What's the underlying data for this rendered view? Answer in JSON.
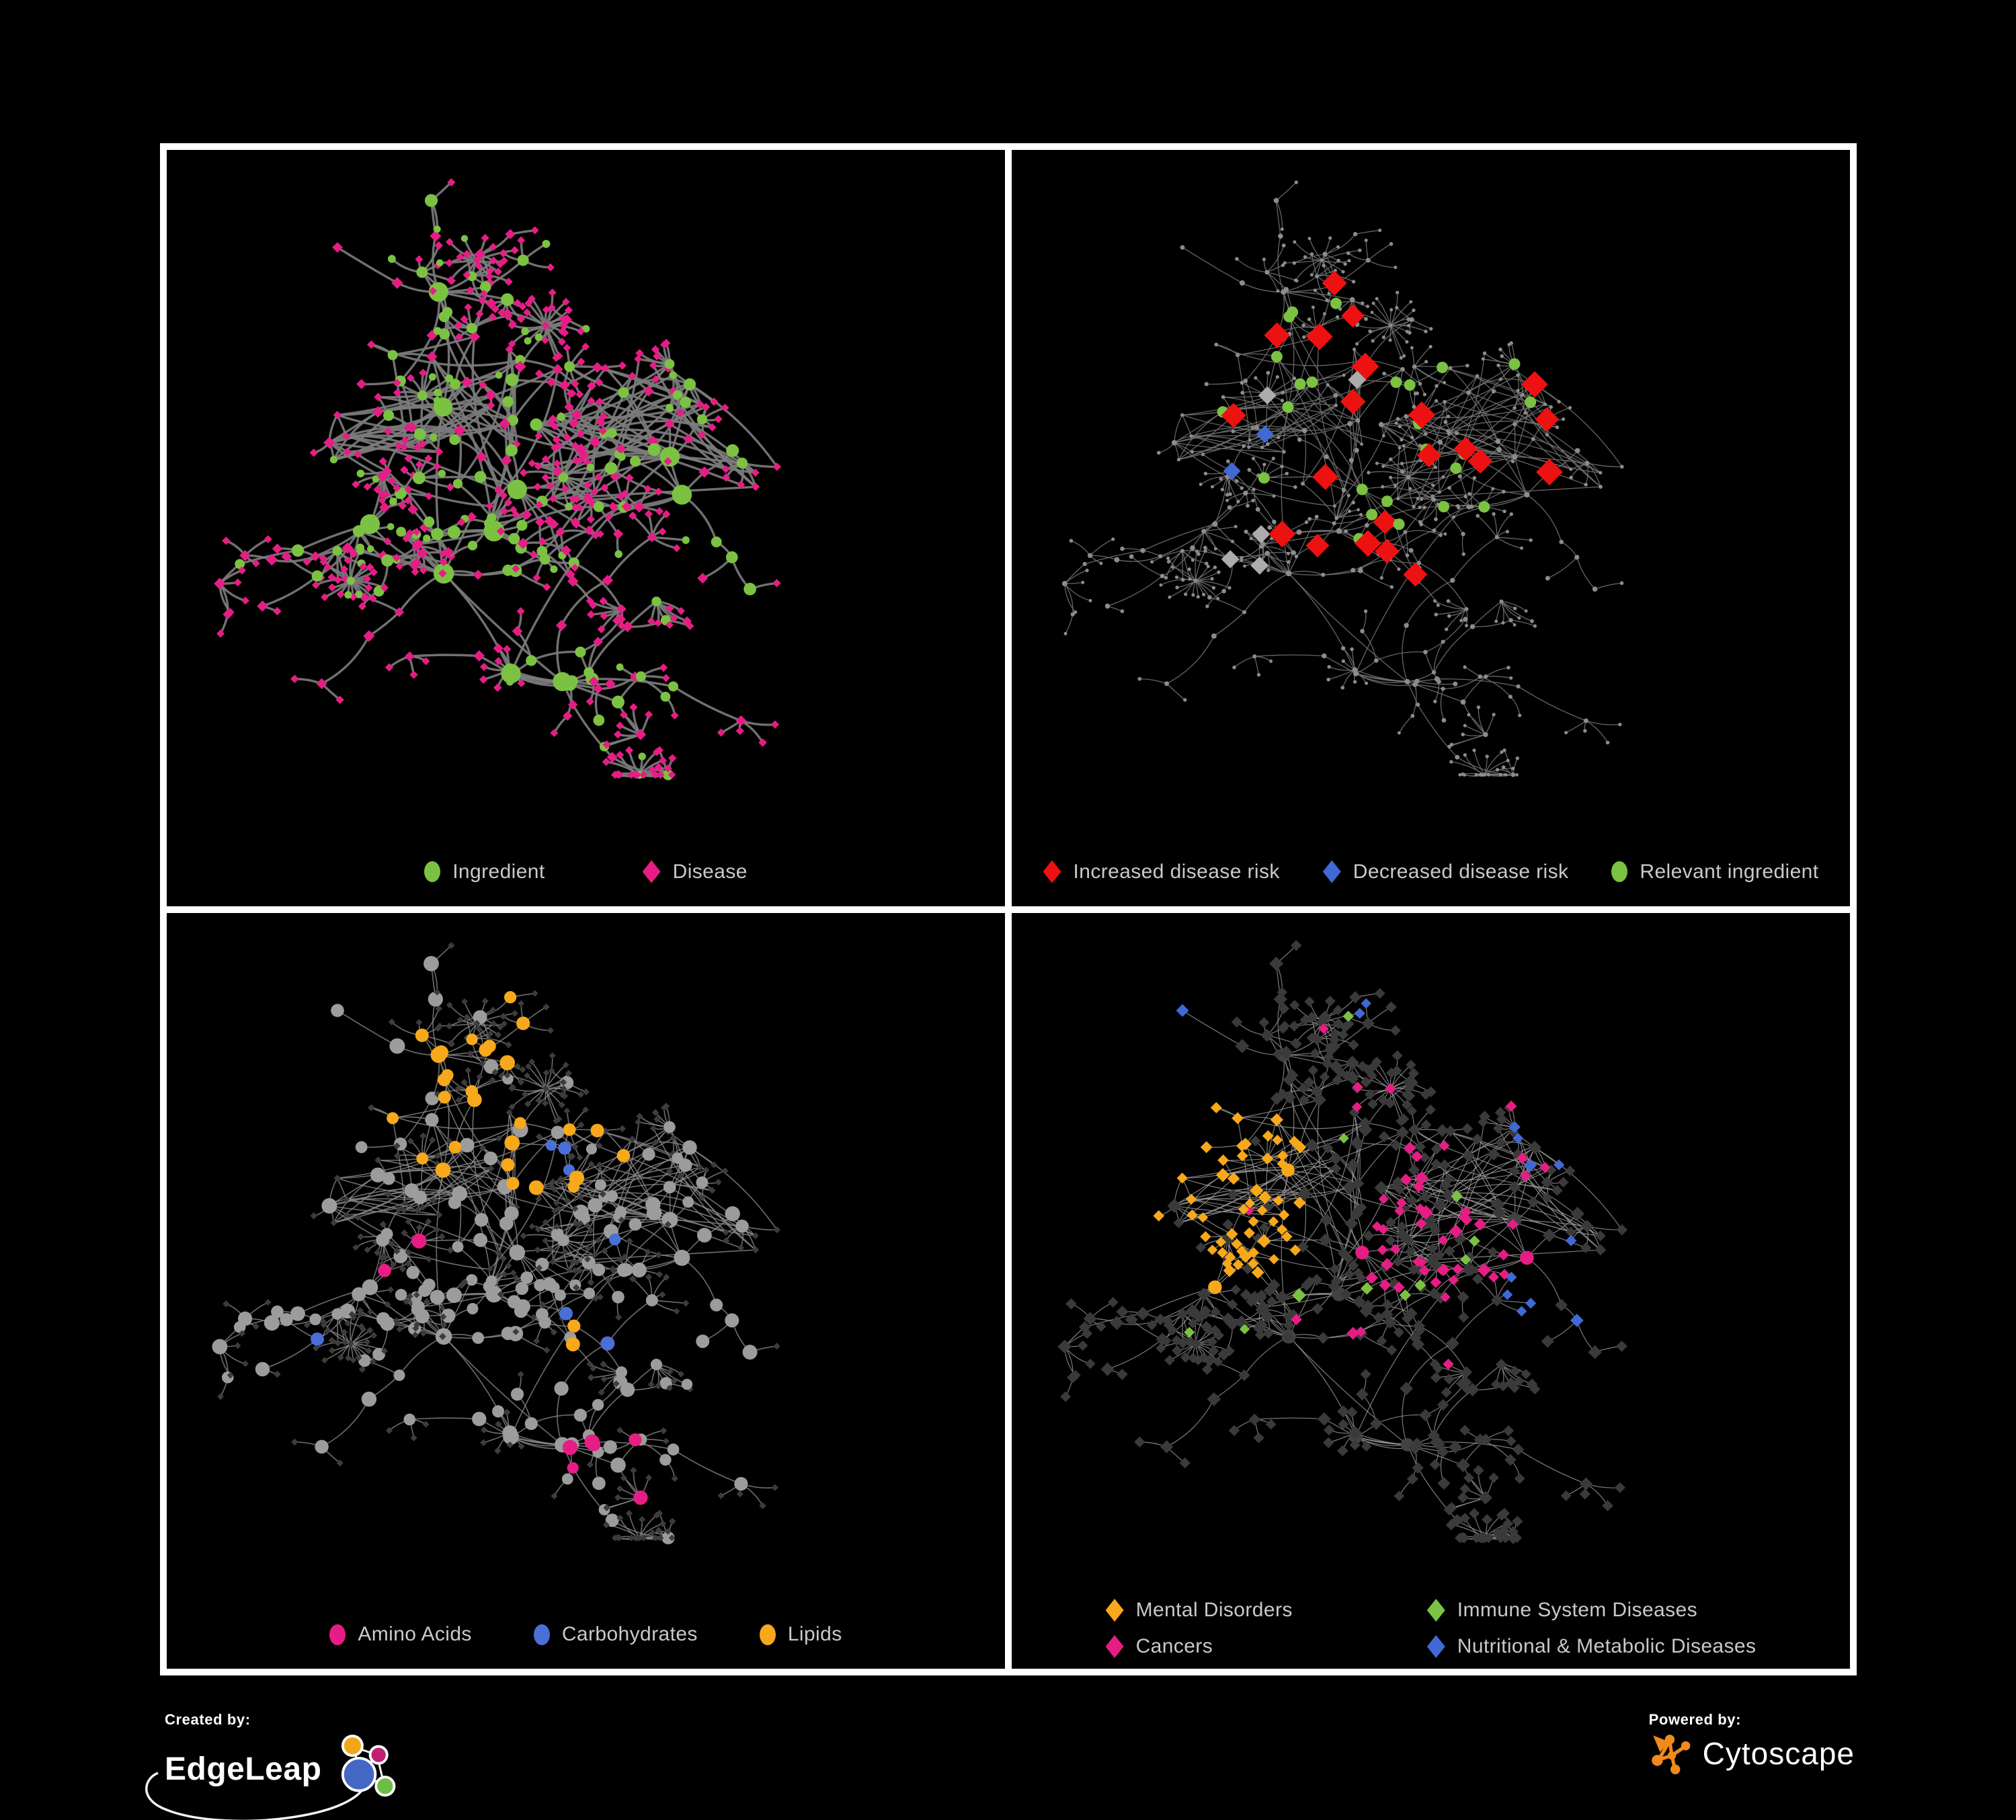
{
  "figure": {
    "background": "#000000",
    "frame_color": "#ffffff",
    "legend_text_color": "#c9c9c9"
  },
  "panels": [
    {
      "id": "ingredient-disease",
      "legend": {
        "items": [
          {
            "label": "Ingredient",
            "shape": "circle",
            "color": "#7CC242"
          },
          {
            "label": "Disease",
            "shape": "diamond",
            "color": "#E61D85"
          }
        ]
      }
    },
    {
      "id": "disease-risk",
      "legend": {
        "items": [
          {
            "label": "Increased disease risk",
            "shape": "diamond",
            "color": "#EE1111"
          },
          {
            "label": "Decreased disease risk",
            "shape": "diamond",
            "color": "#4169D6"
          },
          {
            "label": "Relevant ingredient",
            "shape": "circle",
            "color": "#7CC242"
          }
        ]
      }
    },
    {
      "id": "nutrient-classes",
      "legend": {
        "items": [
          {
            "label": "Amino Acids",
            "shape": "circle",
            "color": "#E61D85"
          },
          {
            "label": "Carbohydrates",
            "shape": "circle",
            "color": "#4A6FD6"
          },
          {
            "label": "Lipids",
            "shape": "circle",
            "color": "#F7A81B"
          }
        ]
      }
    },
    {
      "id": "disease-classes",
      "legend": {
        "items": [
          {
            "label": "Mental Disorders",
            "shape": "diamond",
            "color": "#F7A81B"
          },
          {
            "label": "Immune System Diseases",
            "shape": "diamond",
            "color": "#7CC242"
          },
          {
            "label": "Cancers",
            "shape": "diamond",
            "color": "#E61D85"
          },
          {
            "label": "Nutritional & Metabolic Diseases",
            "shape": "diamond",
            "color": "#4169D6"
          }
        ]
      }
    }
  ],
  "network": {
    "seed": 13,
    "clusters": 10,
    "branchMin": 5,
    "branchMax": 9,
    "leafMax": 8,
    "bursts": 5,
    "extraLinks": 4,
    "dense": 2,
    "meshEdges": 55,
    "styles": {
      "ingredient-disease": {
        "edge": "#7b7b7b",
        "edgeWidth": 3.4,
        "edgeOpacity": 0.92,
        "ingredient": "#7CC242",
        "disease": "#E61D85"
      },
      "disease-risk": {
        "edge": "#707070",
        "edgeWidth": 1.3,
        "edgeOpacity": 0.9,
        "node": "#8c8c8c",
        "increased": "#EE1111",
        "decreased": "#4169D6",
        "neutral": "#ACACAC",
        "relevant": "#7CC242"
      },
      "nutrient-classes": {
        "edge": "#8a8a8a",
        "edgeWidth": 1.6,
        "edgeOpacity": 0.8,
        "node": "#9c9c9c",
        "disease_dim": "#3c3c3c",
        "amino_acids": "#E61D85",
        "carbohydrates": "#4A6FD6",
        "lipids": "#F7A81B"
      },
      "disease-classes": {
        "edge": "#989898",
        "edgeWidth": 1.15,
        "edgeOpacity": 0.85,
        "dim": "#3a3a3a",
        "hub": "#424242",
        "mental": "#F7A81B",
        "immune": "#7CC242",
        "cancers": "#E61D85",
        "nutritional": "#4169D6"
      }
    }
  },
  "footer": {
    "created_by_label": "Created by:",
    "created_by_name": "EdgeLeap",
    "powered_by_label": "Powered by:",
    "powered_by_name": "Cytoscape"
  }
}
